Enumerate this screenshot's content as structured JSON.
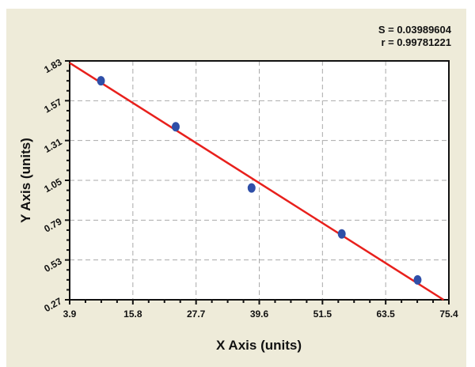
{
  "chart_data": {
    "type": "scatter",
    "title": "",
    "xlabel": "X Axis (units)",
    "ylabel": "Y Axis (units)",
    "xlim": [
      3.9,
      75.4
    ],
    "ylim": [
      0.27,
      1.83
    ],
    "xticks": [
      "3.9",
      "15.8",
      "27.7",
      "39.6",
      "51.5",
      "63.5",
      "75.4"
    ],
    "yticks": [
      "0.27",
      "0.53",
      "0.79",
      "1.05",
      "1.31",
      "1.57",
      "1.83"
    ],
    "grid": true,
    "annotations": [
      "S = 0.03989604",
      "r = 0.99781221"
    ],
    "points": [
      {
        "x": 9.8,
        "y": 1.7
      },
      {
        "x": 23.9,
        "y": 1.4
      },
      {
        "x": 38.2,
        "y": 1.0
      },
      {
        "x": 55.2,
        "y": 0.7
      },
      {
        "x": 69.5,
        "y": 0.4
      }
    ],
    "fit_line": [
      {
        "x": 3.9,
        "y": 1.817
      },
      {
        "x": 74.4,
        "y": 0.27
      }
    ],
    "colors": {
      "points": "#2f4fa8",
      "fit_line": "#e8201c",
      "background": "#eeebd9",
      "plot": "#ffffff"
    }
  }
}
